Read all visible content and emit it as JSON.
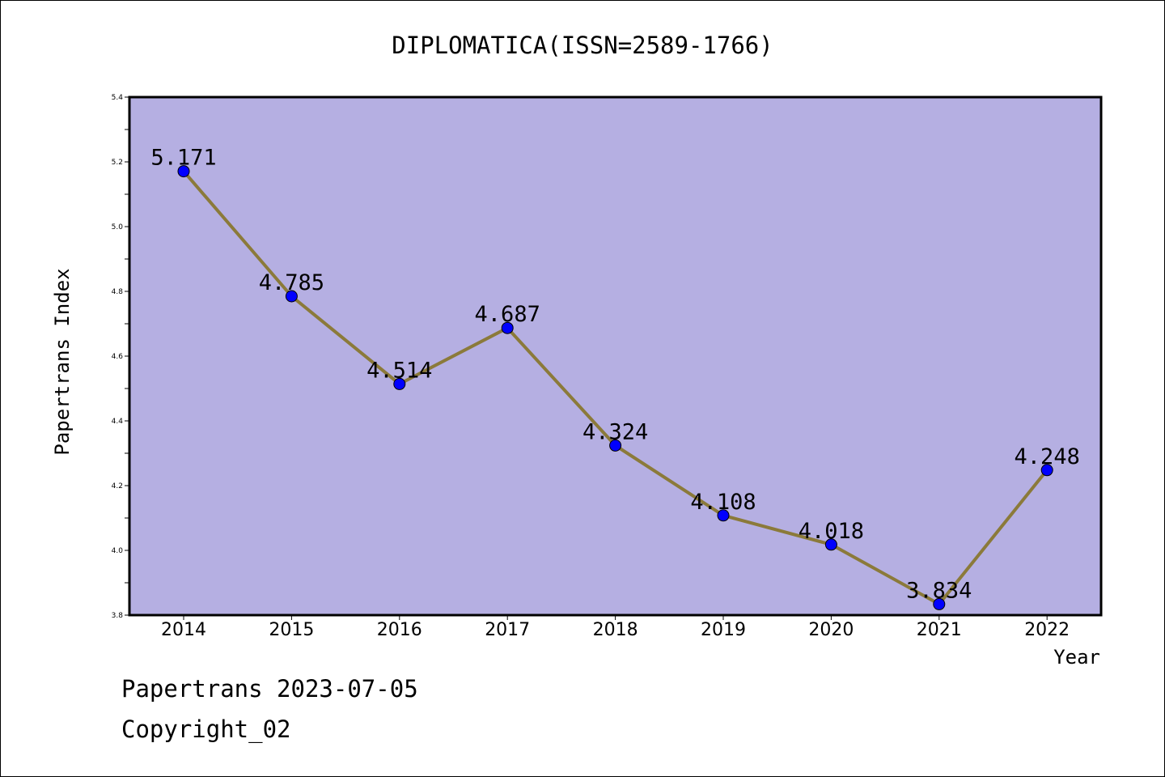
{
  "chart_data": {
    "type": "line",
    "title": "DIPLOMATICA(ISSN=2589-1766)",
    "xlabel": "Year",
    "ylabel": "Papertrans Index",
    "categories": [
      "2014",
      "2015",
      "2016",
      "2017",
      "2018",
      "2019",
      "2020",
      "2021",
      "2022"
    ],
    "series": [
      {
        "values": [
          5.171,
          4.785,
          4.514,
          4.687,
          4.324,
          4.108,
          4.018,
          3.834,
          4.248
        ],
        "data_labels": [
          "5.171",
          "4.785",
          "4.514",
          "4.687",
          "4.324",
          "4.108",
          "4.018",
          "3.834",
          "4.248"
        ]
      }
    ],
    "ylim": [
      3.8,
      5.4
    ],
    "yticks": [
      "3.8",
      "4.0",
      "4.2",
      "4.4",
      "4.6",
      "4.8",
      "5.0",
      "5.2",
      "5.4"
    ],
    "grid": false,
    "colors": {
      "plot_background": "#b5afe2",
      "line": "#8b7a3a",
      "marker": "#0000ff"
    }
  },
  "footer": {
    "line1": "Papertrans 2023-07-05",
    "line2": "Copyright_02"
  }
}
